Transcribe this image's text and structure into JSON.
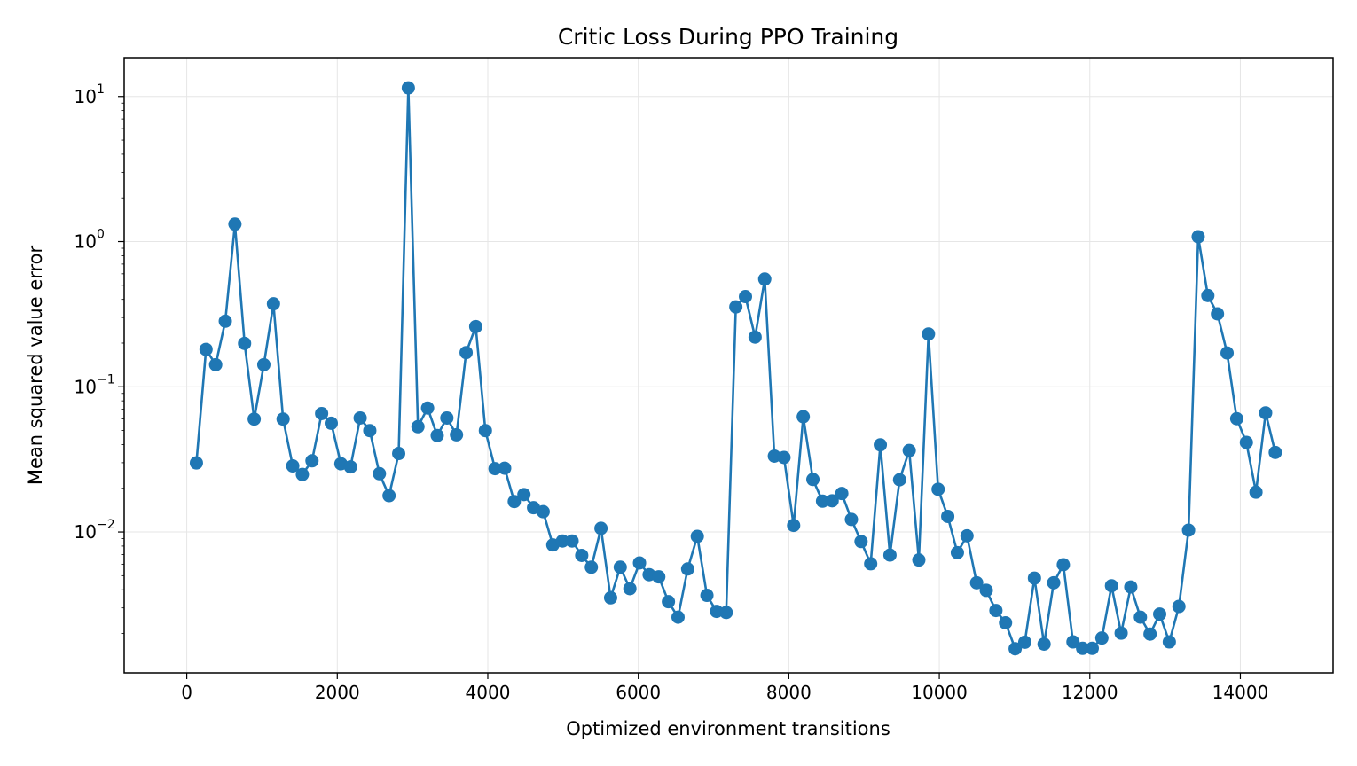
{
  "chart_data": {
    "type": "line",
    "title": "Critic Loss During PPO Training",
    "xlabel": "Optimized environment transitions",
    "ylabel": "Mean squared value error",
    "yscale": "log",
    "xlim": [
      -832,
      15232
    ],
    "ylim": [
      0.00107,
      18.5
    ],
    "grid": true,
    "color": "#1f77b4",
    "x_ticks": [
      {
        "value": 0,
        "label": "0"
      },
      {
        "value": 2000,
        "label": "2000"
      },
      {
        "value": 4000,
        "label": "4000"
      },
      {
        "value": 6000,
        "label": "6000"
      },
      {
        "value": 8000,
        "label": "8000"
      },
      {
        "value": 10000,
        "label": "10000"
      },
      {
        "value": 12000,
        "label": "12000"
      },
      {
        "value": 14000,
        "label": "14000"
      }
    ],
    "y_ticks": [
      {
        "value": 10,
        "base": "10",
        "exp": "1"
      },
      {
        "value": 1,
        "base": "10",
        "exp": "0"
      },
      {
        "value": 0.1,
        "base": "10",
        "exp": "−1"
      },
      {
        "value": 0.01,
        "base": "10",
        "exp": "−2"
      }
    ],
    "series": [
      {
        "x": [
          128,
          256,
          384,
          512,
          640,
          768,
          896,
          1024,
          1152,
          1280,
          1408,
          1536,
          1664,
          1792,
          1920,
          2048,
          2176,
          2304,
          2432,
          2560,
          2688,
          2816,
          2944,
          3072,
          3200,
          3328,
          3456,
          3584,
          3712,
          3840,
          3968,
          4096,
          4224,
          4352,
          4480,
          4608,
          4736,
          4864,
          4992,
          5120,
          5248,
          5376,
          5504,
          5632,
          5760,
          5888,
          6016,
          6144,
          6272,
          6400,
          6528,
          6656,
          6784,
          6912,
          7040,
          7168,
          7296,
          7424,
          7552,
          7680,
          7808,
          7936,
          8064,
          8192,
          8320,
          8448,
          8576,
          8704,
          8832,
          8960,
          9088,
          9216,
          9344,
          9472,
          9600,
          9728,
          9856,
          9984,
          10112,
          10240,
          10368,
          10496,
          10624,
          10752,
          10880,
          11008,
          11136,
          11264,
          11392,
          11520,
          11648,
          11776,
          11904,
          12032,
          12160,
          12288,
          12416,
          12544,
          12672,
          12800,
          12928,
          13056,
          13184,
          13312,
          13440,
          13568,
          13696,
          13824,
          13952,
          14080,
          14208,
          14336,
          14464
        ],
        "values": [
          0.0299,
          0.181,
          0.142,
          0.283,
          1.32,
          0.199,
          0.0599,
          0.142,
          0.373,
          0.0599,
          0.0285,
          0.0249,
          0.0309,
          0.0654,
          0.0561,
          0.0295,
          0.0281,
          0.061,
          0.0499,
          0.0252,
          0.0178,
          0.0347,
          11.45,
          0.0531,
          0.0714,
          0.0462,
          0.061,
          0.0467,
          0.172,
          0.26,
          0.0499,
          0.0273,
          0.0275,
          0.0162,
          0.0181,
          0.0147,
          0.0138,
          0.00814,
          0.00867,
          0.00867,
          0.0069,
          0.00572,
          0.0106,
          0.00352,
          0.00572,
          0.00407,
          0.00612,
          0.00508,
          0.00491,
          0.00331,
          0.00259,
          0.00556,
          0.00933,
          0.00366,
          0.00284,
          0.00279,
          0.355,
          0.418,
          0.22,
          0.552,
          0.0333,
          0.0326,
          0.0111,
          0.0622,
          0.023,
          0.0163,
          0.0164,
          0.0184,
          0.0122,
          0.0086,
          0.00604,
          0.0398,
          0.00693,
          0.0229,
          0.0364,
          0.00641,
          0.231,
          0.0197,
          0.0128,
          0.00721,
          0.00941,
          0.00447,
          0.00396,
          0.00288,
          0.00237,
          0.00157,
          0.00174,
          0.00481,
          0.00169,
          0.00447,
          0.00595,
          0.00175,
          0.00158,
          0.00158,
          0.00186,
          0.00426,
          0.00201,
          0.00418,
          0.00259,
          0.00198,
          0.00272,
          0.00175,
          0.00307,
          0.0103,
          1.08,
          0.425,
          0.318,
          0.171,
          0.0603,
          0.0414,
          0.0188,
          0.0661,
          0.0353
        ]
      }
    ]
  }
}
